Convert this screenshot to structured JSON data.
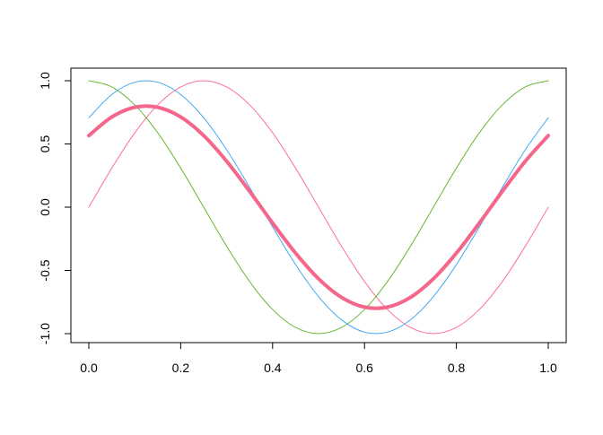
{
  "chart_data": {
    "type": "line",
    "title": "",
    "xlabel": "",
    "ylabel": "",
    "xlim": [
      0,
      1
    ],
    "ylim": [
      -1,
      1
    ],
    "grid": false,
    "x_ticks": [
      "0.0",
      "0.2",
      "0.4",
      "0.6",
      "0.8",
      "1.0"
    ],
    "y_ticks": [
      "-1.0",
      "-0.5",
      "0.0",
      "0.5",
      "1.0"
    ],
    "x": [
      0,
      0.05,
      0.1,
      0.15,
      0.2,
      0.25,
      0.3,
      0.35,
      0.4,
      0.45,
      0.5,
      0.55,
      0.6,
      0.65,
      0.7,
      0.75,
      0.8,
      0.85,
      0.9,
      0.95,
      1
    ],
    "series": [
      {
        "color": "#FF6F9A",
        "width": 1,
        "values": [
          0,
          0.309,
          0.588,
          0.809,
          0.951,
          1,
          0.951,
          0.809,
          0.588,
          0.309,
          0,
          -0.309,
          -0.588,
          -0.809,
          -0.951,
          -1,
          -0.951,
          -0.809,
          -0.588,
          -0.309,
          0
        ]
      },
      {
        "color": "#66B832",
        "width": 1,
        "values": [
          1,
          0.951,
          0.809,
          0.588,
          0.309,
          0,
          -0.309,
          -0.588,
          -0.809,
          -0.951,
          -1,
          -0.951,
          -0.809,
          -0.588,
          -0.309,
          0,
          0.309,
          0.588,
          0.809,
          0.951,
          1
        ]
      },
      {
        "color": "#3FA9F5",
        "width": 1,
        "values": [
          0.707,
          0.891,
          0.988,
          0.988,
          0.891,
          0.707,
          0.454,
          0.156,
          -0.156,
          -0.454,
          -0.707,
          -0.891,
          -0.988,
          -0.988,
          -0.891,
          -0.707,
          -0.454,
          -0.156,
          0.156,
          0.454,
          0.707
        ]
      },
      {
        "color": "#F4668A",
        "width": 4,
        "values": [
          0.566,
          0.713,
          0.79,
          0.79,
          0.713,
          0.566,
          0.363,
          0.125,
          -0.125,
          -0.363,
          -0.566,
          -0.713,
          -0.79,
          -0.79,
          -0.713,
          -0.566,
          -0.363,
          -0.125,
          0.125,
          0.363,
          0.566
        ]
      }
    ]
  }
}
